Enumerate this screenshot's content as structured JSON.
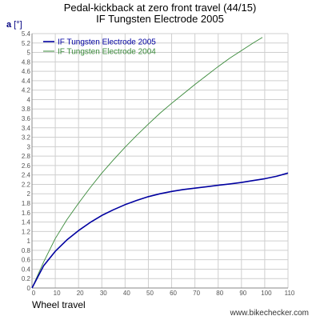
{
  "title_line1": "Pedal-kickback at zero front travel (44/15)",
  "title_line2": "IF Tungsten Electrode 2005",
  "y_unit_letter": "a",
  "y_unit_rest": " [°]",
  "xlabel": "Wheel travel",
  "watermark": "www.bikechecker.com",
  "colors": {
    "series1": "#0000a0",
    "series2": "#3a8a3a",
    "grid": "#cfcfcf"
  },
  "chart_data": {
    "type": "line",
    "title": "Pedal-kickback at zero front travel (44/15)",
    "subtitle": "IF Tungsten Electrode 2005",
    "xlabel": "Wheel travel",
    "ylabel": "a [°]",
    "xlim": [
      0,
      110
    ],
    "ylim": [
      0,
      5.4
    ],
    "xticks": [
      0,
      10,
      20,
      30,
      40,
      50,
      60,
      70,
      80,
      90,
      100,
      110
    ],
    "yticks": [
      0,
      0.2,
      0.4,
      0.6,
      0.8,
      1,
      1.2,
      1.4,
      1.6,
      1.8,
      2,
      2.2,
      2.4,
      2.6,
      2.8,
      3,
      3.2,
      3.4,
      3.6,
      3.8,
      4,
      4.2,
      4.4,
      4.6,
      4.8,
      5,
      5.2,
      5.4
    ],
    "ytick_labels": [
      "0",
      "0.2",
      "0.4",
      "0.6",
      "0.8",
      "1",
      "1.2",
      "1.4",
      "1.6",
      "1.8",
      "2",
      "2.2",
      "2.4",
      "2.6",
      "2.8",
      "3",
      "3.2",
      "3.4",
      "3.6",
      "3.8",
      "4",
      "4.2",
      "4.4",
      "4.6",
      "4.8",
      "5",
      "5.2",
      "5.4"
    ],
    "xtick_labels": [
      "0",
      "10",
      "20",
      "30",
      "40",
      "50",
      "60",
      "70",
      "80",
      "90",
      "100",
      "110"
    ],
    "grid": true,
    "legend": "top-left",
    "series": [
      {
        "name": "IF Tungsten Electrode 2005",
        "color": "#0000a0",
        "x": [
          0,
          5,
          10,
          15,
          20,
          25,
          30,
          35,
          40,
          45,
          50,
          55,
          60,
          65,
          70,
          75,
          80,
          85,
          90,
          95,
          100,
          105,
          110
        ],
        "y": [
          0,
          0.47,
          0.78,
          1.02,
          1.22,
          1.39,
          1.54,
          1.66,
          1.77,
          1.86,
          1.94,
          2.0,
          2.05,
          2.09,
          2.12,
          2.15,
          2.18,
          2.21,
          2.24,
          2.28,
          2.32,
          2.37,
          2.44
        ]
      },
      {
        "name": "IF Tungsten Electrode 2004",
        "color": "#3a8a3a",
        "x": [
          0,
          5,
          10,
          15,
          20,
          25,
          30,
          35,
          40,
          45,
          50,
          55,
          60,
          65,
          70,
          75,
          80,
          85,
          90,
          95,
          99
        ],
        "y": [
          0,
          0.55,
          1.05,
          1.45,
          1.8,
          2.13,
          2.44,
          2.72,
          2.99,
          3.24,
          3.48,
          3.71,
          3.92,
          4.12,
          4.32,
          4.51,
          4.7,
          4.88,
          5.04,
          5.2,
          5.32
        ]
      }
    ]
  }
}
